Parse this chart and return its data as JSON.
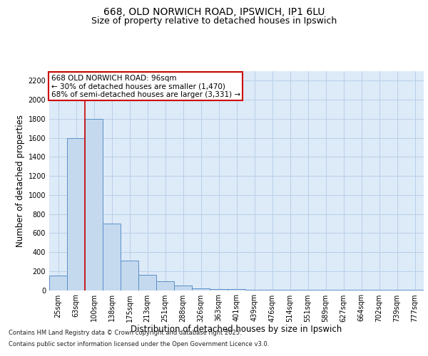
{
  "title_line1": "668, OLD NORWICH ROAD, IPSWICH, IP1 6LU",
  "title_line2": "Size of property relative to detached houses in Ipswich",
  "xlabel": "Distribution of detached houses by size in Ipswich",
  "ylabel": "Number of detached properties",
  "categories": [
    "25sqm",
    "63sqm",
    "100sqm",
    "138sqm",
    "175sqm",
    "213sqm",
    "251sqm",
    "288sqm",
    "326sqm",
    "363sqm",
    "401sqm",
    "439sqm",
    "476sqm",
    "514sqm",
    "551sqm",
    "589sqm",
    "627sqm",
    "664sqm",
    "702sqm",
    "739sqm",
    "777sqm"
  ],
  "values": [
    150,
    1600,
    1800,
    700,
    310,
    160,
    90,
    50,
    20,
    12,
    8,
    5,
    3,
    2,
    2,
    1,
    1,
    1,
    1,
    1,
    1
  ],
  "bar_color": "#c5d9ee",
  "bar_edge_color": "#5b8fc9",
  "red_line_index": 2,
  "annotation_text": "668 OLD NORWICH ROAD: 96sqm\n← 30% of detached houses are smaller (1,470)\n68% of semi-detached houses are larger (3,331) →",
  "annotation_box_facecolor": "#ffffff",
  "annotation_border_color": "#cc0000",
  "ylim": [
    0,
    2300
  ],
  "yticks": [
    0,
    200,
    400,
    600,
    800,
    1000,
    1200,
    1400,
    1600,
    1800,
    2000,
    2200
  ],
  "grid_color": "#b8d0e8",
  "background_color": "#ddeaf8",
  "footer_line1": "Contains HM Land Registry data © Crown copyright and database right 2025.",
  "footer_line2": "Contains public sector information licensed under the Open Government Licence v3.0.",
  "title_fontsize": 10,
  "subtitle_fontsize": 9,
  "tick_fontsize": 7,
  "label_fontsize": 8.5,
  "annotation_fontsize": 7.5,
  "footer_fontsize": 6
}
